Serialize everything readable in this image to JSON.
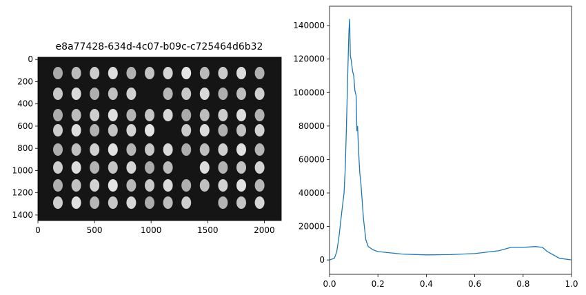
{
  "chart_data": [
    {
      "type": "image",
      "title": "e8a77428-634d-4c07-b09c-c725464d6b32",
      "xlim": [
        0,
        2150
      ],
      "xticks": [
        0,
        500,
        1000,
        1500,
        2000
      ],
      "ylim": [
        1450,
        -20
      ],
      "yticks": [
        0,
        200,
        400,
        600,
        800,
        1000,
        1200,
        1400
      ]
    },
    {
      "type": "line",
      "color": "#1f77b4",
      "x": [
        0,
        0.02,
        0.03,
        0.04,
        0.05,
        0.06,
        0.065,
        0.07,
        0.075,
        0.08,
        0.083,
        0.086,
        0.09,
        0.095,
        0.1,
        0.105,
        0.11,
        0.113,
        0.116,
        0.12,
        0.125,
        0.13,
        0.14,
        0.15,
        0.16,
        0.18,
        0.2,
        0.3,
        0.4,
        0.5,
        0.6,
        0.7,
        0.75,
        0.8,
        0.85,
        0.88,
        0.9,
        0.95,
        1.0
      ],
      "values": [
        0,
        1000,
        5000,
        15000,
        28000,
        40000,
        55000,
        80000,
        110000,
        136000,
        144000,
        122000,
        119000,
        113000,
        110000,
        101000,
        98000,
        77000,
        80000,
        65000,
        52000,
        45000,
        25000,
        12000,
        8000,
        6000,
        5000,
        3500,
        3000,
        3200,
        3800,
        5500,
        7500,
        7500,
        8000,
        7500,
        5000,
        1000,
        0
      ],
      "xlim": [
        0,
        1.0
      ],
      "xticks": [
        0.0,
        0.2,
        0.4,
        0.6,
        0.8,
        1.0
      ],
      "xtick_labels": [
        "0.0",
        "0.2",
        "0.4",
        "0.6",
        "0.8",
        "1.0"
      ],
      "ylim": [
        -8600,
        151600
      ],
      "yticks": [
        0,
        20000,
        40000,
        60000,
        80000,
        100000,
        120000,
        140000
      ]
    }
  ]
}
